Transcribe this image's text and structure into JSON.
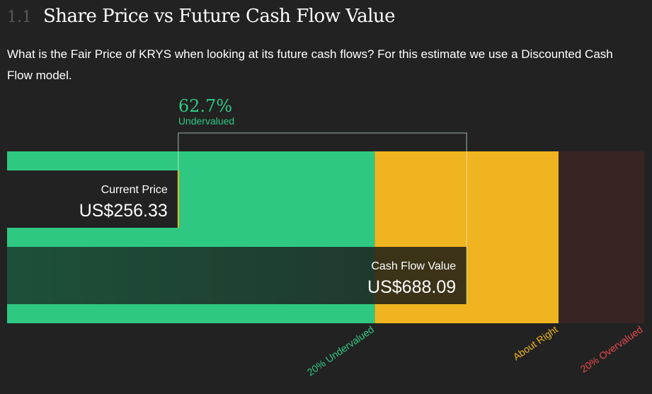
{
  "header": {
    "section_number": "1.1",
    "title": "Share Price vs Future Cash Flow Value"
  },
  "description": "What is the Fair Price of KRYS when looking at its future cash flows? For this estimate we use a Discounted Cash Flow model.",
  "colors": {
    "undervalued": "#2ec882",
    "about_right": "#efb41f",
    "overvalued": "#372524",
    "overvalued_text": "#e94a4a",
    "background": "#222222"
  },
  "chart_data": {
    "type": "bar",
    "ticker": "KRYS",
    "current_price": {
      "label": "Current Price",
      "value": 256.33,
      "display": "US$256.33"
    },
    "cash_flow_value": {
      "label": "Cash Flow Value",
      "value": 688.09,
      "display": "US$688.09"
    },
    "discount": {
      "display": "62.7%",
      "label": "Undervalued"
    },
    "zones": [
      {
        "label": "20% Undervalued",
        "from": 0,
        "to": 550.47
      },
      {
        "label": "About Right",
        "from": 550.47,
        "to": 825.71
      },
      {
        "label": "20% Overvalued",
        "from": 825.71,
        "to": 954
      }
    ],
    "xlim": [
      0,
      954
    ]
  }
}
